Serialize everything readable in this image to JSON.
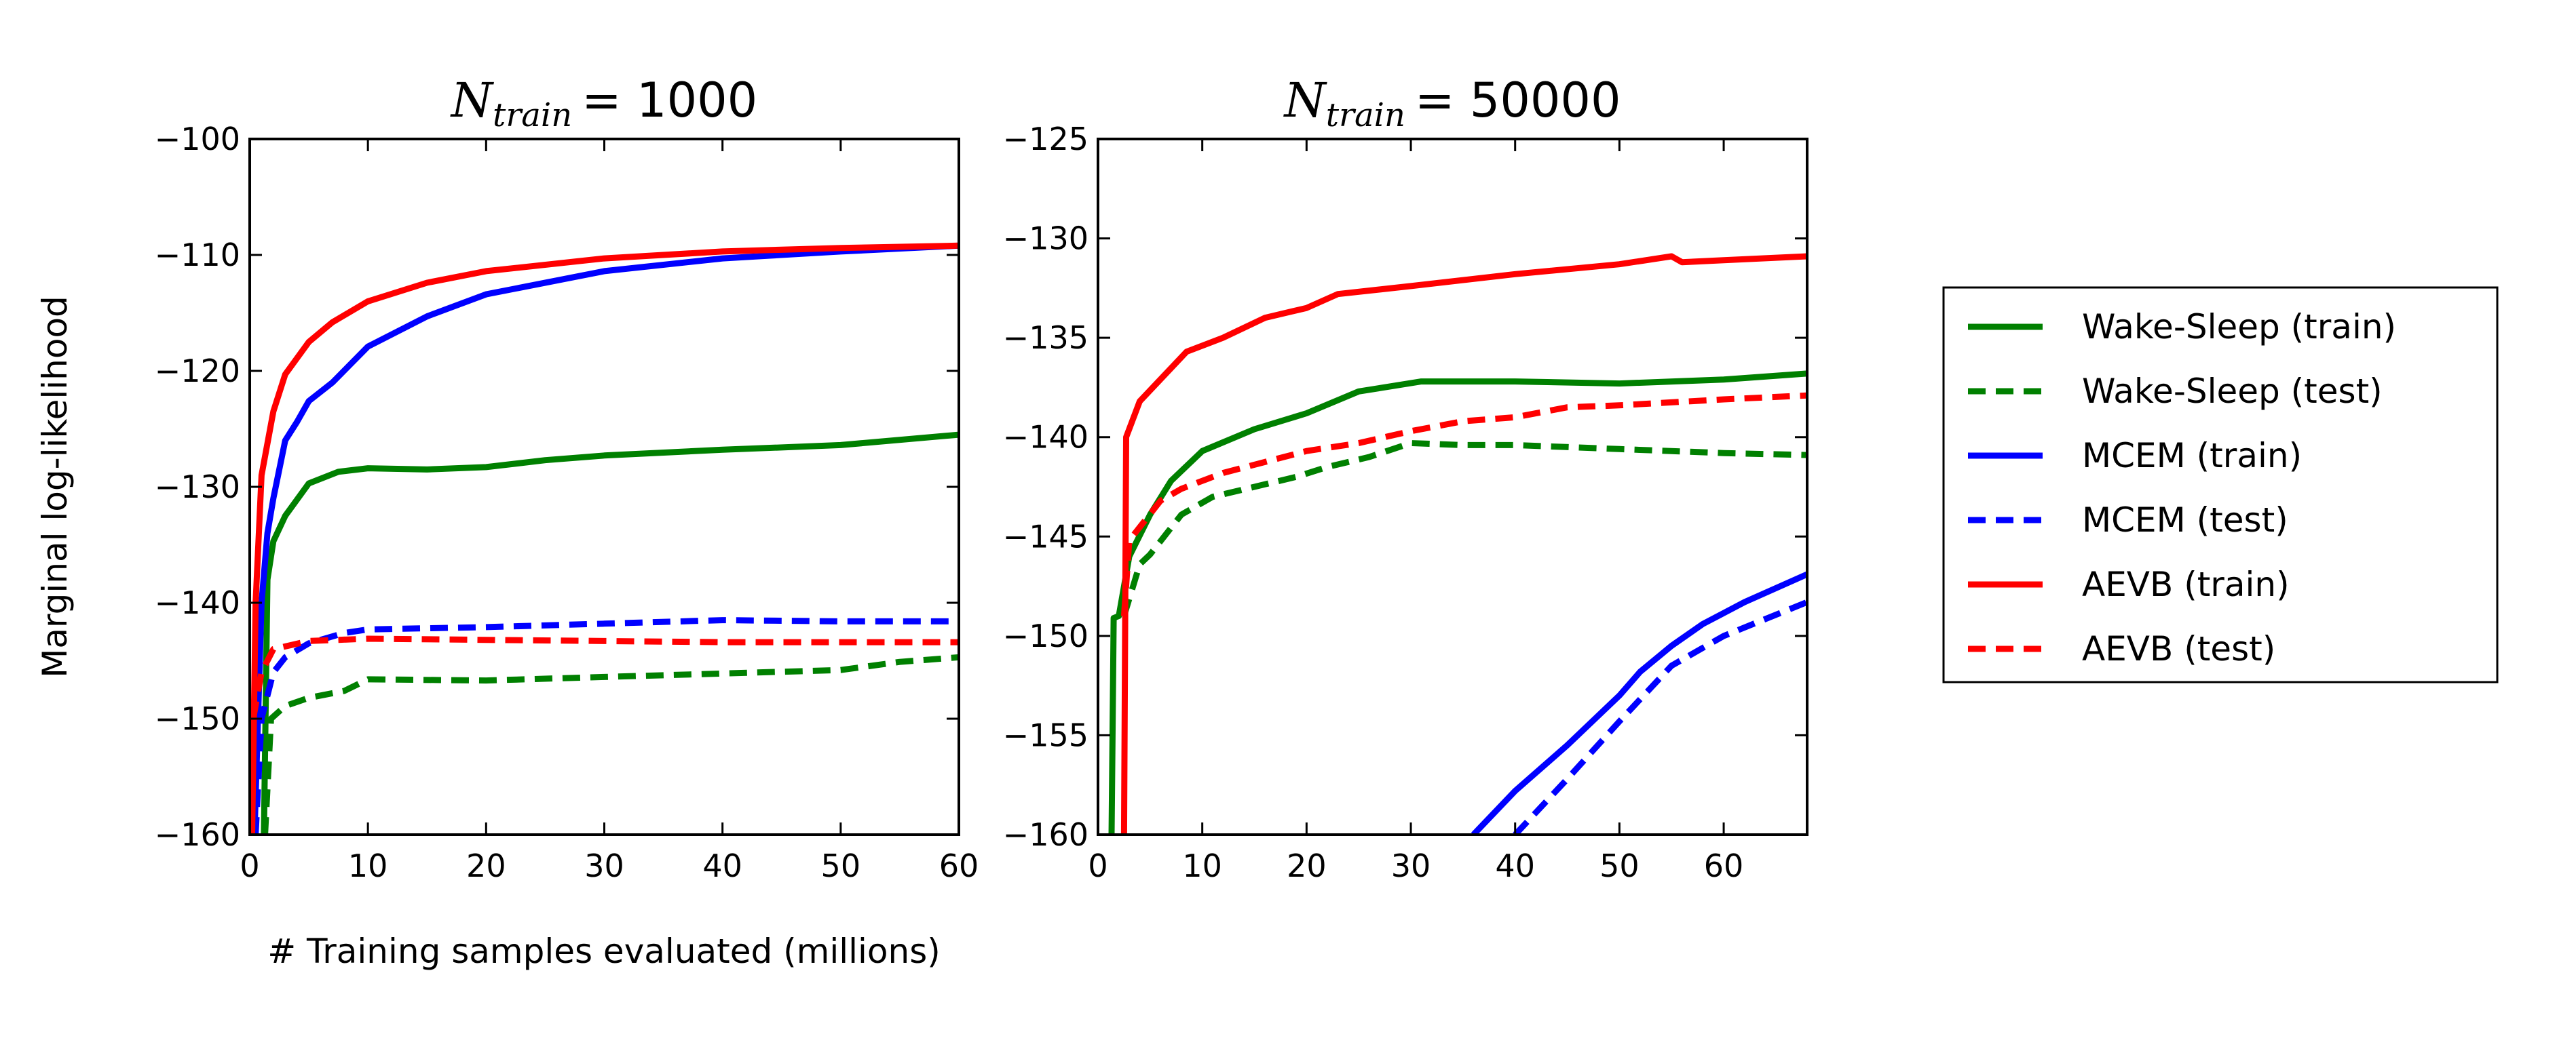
{
  "chart_data": [
    {
      "type": "line",
      "title_var": "N",
      "title_sub": "train",
      "title_rest": "= 1000",
      "xlabel": "# Training samples evaluated (millions)",
      "ylabel": "Marginal log-likelihood",
      "xlim": [
        0,
        60
      ],
      "ylim": [
        -160,
        -100
      ],
      "xticks": [
        "0",
        "10",
        "20",
        "30",
        "40",
        "50",
        "60"
      ],
      "yticks": [
        "−160",
        "−150",
        "−140",
        "−130",
        "−120",
        "−110",
        "−100"
      ],
      "grid": false,
      "series": [
        {
          "name": "Wake-Sleep (train)",
          "color": "#008000",
          "dash": false,
          "x": [
            1.2,
            1.5,
            2,
            3,
            5,
            7.5,
            10,
            15,
            20,
            25,
            30,
            40,
            50,
            60
          ],
          "y": [
            -160,
            -138,
            -134.7,
            -132.5,
            -129.7,
            -128.7,
            -128.4,
            -128.5,
            -128.3,
            -127.7,
            -127.3,
            -126.8,
            -126.4,
            -125.5
          ]
        },
        {
          "name": "Wake-Sleep (test)",
          "color": "#008000",
          "dash": true,
          "x": [
            1.3,
            1.8,
            3,
            5,
            8,
            10,
            20,
            30,
            40,
            50,
            55,
            60
          ],
          "y": [
            -160,
            -150,
            -148.9,
            -148.2,
            -147.6,
            -146.6,
            -146.7,
            -146.4,
            -146.1,
            -145.8,
            -145.1,
            -144.7
          ]
        },
        {
          "name": "MCEM (train)",
          "color": "#0000ff",
          "dash": false,
          "x": [
            0.4,
            1,
            1.5,
            2,
            3,
            4,
            5,
            7,
            10,
            15,
            20,
            30,
            40,
            50,
            60
          ],
          "y": [
            -160,
            -140,
            -134,
            -131,
            -126,
            -124.4,
            -122.6,
            -121,
            -117.9,
            -115.3,
            -113.4,
            -111.4,
            -110.3,
            -109.7,
            -109.2
          ]
        },
        {
          "name": "MCEM (test)",
          "color": "#0000ff",
          "dash": true,
          "x": [
            0.5,
            1,
            2,
            3,
            5,
            8,
            10,
            20,
            30,
            40,
            50,
            60
          ],
          "y": [
            -160,
            -150,
            -146,
            -144.7,
            -143.5,
            -142.6,
            -142.3,
            -142.1,
            -141.8,
            -141.5,
            -141.6,
            -141.6
          ]
        },
        {
          "name": "AEVB (train)",
          "color": "#ff0000",
          "dash": false,
          "x": [
            0.2,
            0.5,
            1,
            2,
            3,
            5,
            7,
            10,
            15,
            20,
            30,
            40,
            50,
            60
          ],
          "y": [
            -160,
            -140,
            -129,
            -123.5,
            -120.3,
            -117.5,
            -115.8,
            -114,
            -112.4,
            -111.4,
            -110.3,
            -109.7,
            -109.4,
            -109.2
          ]
        },
        {
          "name": "AEVB (test)",
          "color": "#ff0000",
          "dash": true,
          "x": [
            0.3,
            1,
            2,
            5,
            10,
            20,
            30,
            40,
            50,
            60
          ],
          "y": [
            -150,
            -146,
            -144,
            -143.3,
            -143.1,
            -143.2,
            -143.3,
            -143.4,
            -143.4,
            -143.4
          ]
        }
      ]
    },
    {
      "type": "line",
      "title_var": "N",
      "title_sub": "train",
      "title_rest": "= 50000",
      "xlim": [
        0,
        68
      ],
      "ylim": [
        -160,
        -125
      ],
      "xticks": [
        "0",
        "10",
        "20",
        "30",
        "40",
        "50",
        "60"
      ],
      "yticks": [
        "−160",
        "−155",
        "−150",
        "−145",
        "−140",
        "−135",
        "−130",
        "−125"
      ],
      "grid": false,
      "series": [
        {
          "name": "Wake-Sleep (train)",
          "color": "#008000",
          "dash": false,
          "x": [
            1.3,
            1.5,
            2,
            3,
            5,
            7,
            10,
            15,
            20,
            25,
            31,
            40,
            50,
            60,
            68
          ],
          "y": [
            -160,
            -149.1,
            -149,
            -146,
            -143.9,
            -142.2,
            -140.7,
            -139.6,
            -138.8,
            -137.7,
            -137.2,
            -137.2,
            -137.3,
            -137.1,
            -136.8
          ]
        },
        {
          "name": "Wake-Sleep (test)",
          "color": "#008000",
          "dash": true,
          "x": [
            2.5,
            4,
            5,
            8,
            11,
            19,
            22,
            26,
            30,
            35,
            40,
            50,
            60,
            68
          ],
          "y": [
            -149,
            -146.4,
            -145.9,
            -143.9,
            -143,
            -142,
            -141.5,
            -141,
            -140.3,
            -140.4,
            -140.4,
            -140.6,
            -140.8,
            -140.9
          ]
        },
        {
          "name": "MCEM (train)",
          "color": "#0000ff",
          "dash": false,
          "x": [
            36,
            40,
            45,
            50,
            52,
            55,
            58,
            62,
            68
          ],
          "y": [
            -160,
            -157.8,
            -155.5,
            -153,
            -151.8,
            -150.5,
            -149.4,
            -148.3,
            -146.9
          ]
        },
        {
          "name": "MCEM (test)",
          "color": "#0000ff",
          "dash": true,
          "x": [
            40,
            45,
            50,
            55,
            60,
            68
          ],
          "y": [
            -160,
            -157.2,
            -154.3,
            -151.5,
            -150,
            -148.3
          ]
        },
        {
          "name": "AEVB (train)",
          "color": "#ff0000",
          "dash": false,
          "x": [
            2.5,
            2.7,
            4,
            8.5,
            12,
            16,
            20,
            23,
            30,
            40,
            50,
            55,
            56,
            60,
            68
          ],
          "y": [
            -160,
            -140,
            -138.2,
            -135.7,
            -135,
            -134,
            -133.5,
            -132.8,
            -132.4,
            -131.8,
            -131.3,
            -130.9,
            -131.2,
            -131.1,
            -130.9
          ]
        },
        {
          "name": "AEVB (test)",
          "color": "#ff0000",
          "dash": true,
          "x": [
            2.5,
            3,
            6,
            8,
            12,
            20,
            25,
            30,
            35,
            40,
            45,
            50,
            60,
            68
          ],
          "y": [
            -149,
            -145.2,
            -143.2,
            -142.6,
            -141.8,
            -140.7,
            -140.3,
            -139.7,
            -139.2,
            -139,
            -138.5,
            -138.4,
            -138.1,
            -137.9
          ]
        }
      ]
    }
  ],
  "legend": {
    "placement": "right",
    "entries": [
      {
        "label": "Wake-Sleep (train)",
        "color": "#008000",
        "dash": false
      },
      {
        "label": "Wake-Sleep (test)",
        "color": "#008000",
        "dash": true
      },
      {
        "label": "MCEM (train)",
        "color": "#0000ff",
        "dash": false
      },
      {
        "label": "MCEM (test)",
        "color": "#0000ff",
        "dash": true
      },
      {
        "label": "AEVB (train)",
        "color": "#ff0000",
        "dash": false
      },
      {
        "label": "AEVB (test)",
        "color": "#ff0000",
        "dash": true
      }
    ]
  }
}
